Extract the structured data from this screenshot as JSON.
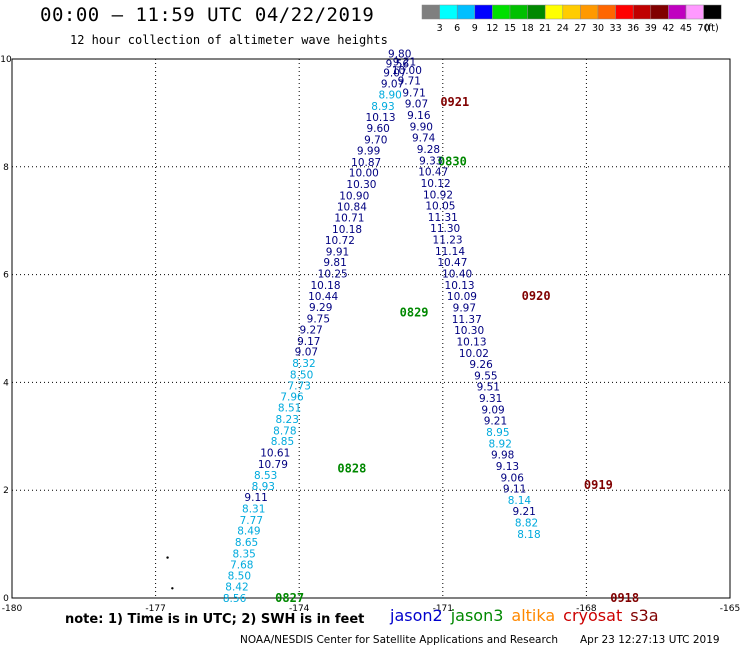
{
  "header": {
    "title": "00:00 – 11:59 UTC 04/22/2019",
    "subtitle": "12 hour collection of altimeter wave heights"
  },
  "color_scale": {
    "unit_label": "(ft)",
    "labels": [
      "3",
      "6",
      "9",
      "12",
      "15",
      "18",
      "21",
      "24",
      "27",
      "30",
      "33",
      "36",
      "39",
      "42",
      "45",
      "70"
    ],
    "colors": [
      "#7f7f7f",
      "#00ffff",
      "#00bfff",
      "#0000ff",
      "#00e000",
      "#00c000",
      "#008800",
      "#ffff00",
      "#ffcc00",
      "#ff9900",
      "#ff6600",
      "#ff0000",
      "#c00000",
      "#800000",
      "#c000c0",
      "#ff99ff",
      "#000000"
    ]
  },
  "footer": {
    "note": "note: 1) Time is in UTC; 2) SWH is in feet",
    "credit": "NOAA/NESDIS Center for Satellite Applications and Research",
    "timestamp": "Apr 23 12:27:13 UTC 2019"
  },
  "satellites": [
    {
      "name": "jason2",
      "color": "#0000cc"
    },
    {
      "name": "jason3",
      "color": "#008800"
    },
    {
      "name": "altika",
      "color": "#ff8800"
    },
    {
      "name": "cryosat",
      "color": "#cc0000"
    },
    {
      "name": "s3a",
      "color": "#800000"
    }
  ],
  "chart_data": {
    "type": "scatter",
    "x_ticks": [
      -180,
      -177,
      -174,
      -171,
      -168,
      -165
    ],
    "y_ticks": [
      0,
      2,
      4,
      6,
      8,
      10
    ],
    "xlim": [
      -180,
      -165
    ],
    "ylim": [
      0,
      10
    ],
    "grid": true,
    "series": [
      {
        "satellite": "jason2",
        "colors": {
          "dark": "#000080",
          "light": "#00aadd"
        },
        "label_color": "#008800",
        "time_labels": [
          {
            "text": "0827",
            "x": -174.2,
            "y": 0.0
          },
          {
            "text": "0828",
            "x": -172.9,
            "y": 2.4
          },
          {
            "text": "0829",
            "x": -171.6,
            "y": 5.3
          },
          {
            "text": "0830",
            "x": -170.8,
            "y": 8.1
          }
        ],
        "points": [
          {
            "x": -175.35,
            "y": 0.0,
            "v": "8.56",
            "c": "light"
          },
          {
            "x": -175.3,
            "y": 0.21,
            "v": "8.42",
            "c": "light"
          },
          {
            "x": -175.25,
            "y": 0.42,
            "v": "8.50",
            "c": "light"
          },
          {
            "x": -175.2,
            "y": 0.62,
            "v": "7.68",
            "c": "light"
          },
          {
            "x": -175.15,
            "y": 0.83,
            "v": "8.35",
            "c": "light"
          },
          {
            "x": -175.1,
            "y": 1.04,
            "v": "8.65",
            "c": "light"
          },
          {
            "x": -175.05,
            "y": 1.25,
            "v": "8.49",
            "c": "light"
          },
          {
            "x": -175.0,
            "y": 1.45,
            "v": "7.77",
            "c": "light"
          },
          {
            "x": -174.95,
            "y": 1.66,
            "v": "8.31",
            "c": "light"
          },
          {
            "x": -174.9,
            "y": 1.87,
            "v": "9.11",
            "c": "dark"
          },
          {
            "x": -174.75,
            "y": 2.08,
            "v": "8.93",
            "c": "light"
          },
          {
            "x": -174.7,
            "y": 2.28,
            "v": "8.53",
            "c": "light"
          },
          {
            "x": -174.55,
            "y": 2.49,
            "v": "10.79",
            "c": "dark"
          },
          {
            "x": -174.5,
            "y": 2.7,
            "v": "10.61",
            "c": "dark"
          },
          {
            "x": -174.35,
            "y": 2.91,
            "v": "8.85",
            "c": "light"
          },
          {
            "x": -174.3,
            "y": 3.11,
            "v": "8.78",
            "c": "light"
          },
          {
            "x": -174.25,
            "y": 3.32,
            "v": "8.23",
            "c": "light"
          },
          {
            "x": -174.2,
            "y": 3.53,
            "v": "8.51",
            "c": "light"
          },
          {
            "x": -174.15,
            "y": 3.74,
            "v": "7.96",
            "c": "light"
          },
          {
            "x": -174.0,
            "y": 3.94,
            "v": "7.73",
            "c": "light"
          },
          {
            "x": -173.95,
            "y": 4.15,
            "v": "8.50",
            "c": "light"
          },
          {
            "x": -173.9,
            "y": 4.36,
            "v": "8.32",
            "c": "light"
          },
          {
            "x": -173.85,
            "y": 4.57,
            "v": "9.07",
            "c": "dark"
          },
          {
            "x": -173.8,
            "y": 4.77,
            "v": "9.17",
            "c": "dark"
          },
          {
            "x": -173.75,
            "y": 4.98,
            "v": "9.27",
            "c": "dark"
          },
          {
            "x": -173.6,
            "y": 5.19,
            "v": "9.75",
            "c": "dark"
          },
          {
            "x": -173.55,
            "y": 5.4,
            "v": "9.29",
            "c": "dark"
          },
          {
            "x": -173.5,
            "y": 5.6,
            "v": "10.44",
            "c": "dark"
          },
          {
            "x": -173.45,
            "y": 5.81,
            "v": "10.18",
            "c": "dark"
          },
          {
            "x": -173.3,
            "y": 6.02,
            "v": "10.25",
            "c": "dark"
          },
          {
            "x": -173.25,
            "y": 6.23,
            "v": "9.81",
            "c": "dark"
          },
          {
            "x": -173.2,
            "y": 6.43,
            "v": "9.91",
            "c": "dark"
          },
          {
            "x": -173.15,
            "y": 6.64,
            "v": "10.72",
            "c": "dark"
          },
          {
            "x": -173.0,
            "y": 6.85,
            "v": "10.18",
            "c": "dark"
          },
          {
            "x": -172.95,
            "y": 7.06,
            "v": "10.71",
            "c": "dark"
          },
          {
            "x": -172.9,
            "y": 7.26,
            "v": "10.84",
            "c": "dark"
          },
          {
            "x": -172.85,
            "y": 7.47,
            "v": "10.90",
            "c": "dark"
          },
          {
            "x": -172.7,
            "y": 7.68,
            "v": "10.30",
            "c": "dark"
          },
          {
            "x": -172.65,
            "y": 7.89,
            "v": "10.00",
            "c": "dark"
          },
          {
            "x": -172.6,
            "y": 8.09,
            "v": "10.87",
            "c": "dark"
          },
          {
            "x": -172.55,
            "y": 8.3,
            "v": "9.99",
            "c": "dark"
          },
          {
            "x": -172.4,
            "y": 8.51,
            "v": "9.70",
            "c": "dark"
          },
          {
            "x": -172.35,
            "y": 8.72,
            "v": "9.60",
            "c": "dark"
          },
          {
            "x": -172.3,
            "y": 8.92,
            "v": "10.13",
            "c": "dark"
          },
          {
            "x": -172.25,
            "y": 9.13,
            "v": "8.93",
            "c": "light"
          },
          {
            "x": -172.1,
            "y": 9.34,
            "v": "8.90",
            "c": "light"
          },
          {
            "x": -172.05,
            "y": 9.55,
            "v": "9.07",
            "c": "dark"
          },
          {
            "x": -172.0,
            "y": 9.75,
            "v": "9.07",
            "c": "dark"
          },
          {
            "x": -171.95,
            "y": 9.92,
            "v": "9.56",
            "c": "dark"
          },
          {
            "x": -171.9,
            "y": 10.1,
            "v": "9.80",
            "c": "dark"
          }
        ]
      },
      {
        "satellite": "jason2",
        "colors": {
          "dark": "#000080",
          "light": "#00aadd"
        },
        "label_color": "#800000",
        "time_labels": [
          {
            "text": "0921",
            "x": -170.75,
            "y": 9.2
          },
          {
            "text": "0920",
            "x": -169.05,
            "y": 5.6
          },
          {
            "text": "0919",
            "x": -167.75,
            "y": 2.1
          },
          {
            "text": "0918",
            "x": -167.2,
            "y": 0.0
          }
        ],
        "points": [
          {
            "x": -171.8,
            "y": 9.95,
            "v": "9.21",
            "c": "dark"
          },
          {
            "x": -171.75,
            "y": 9.8,
            "v": "10.00",
            "c": "dark"
          },
          {
            "x": -171.7,
            "y": 9.6,
            "v": "9.71",
            "c": "dark"
          },
          {
            "x": -171.6,
            "y": 9.38,
            "v": "9.71",
            "c": "dark"
          },
          {
            "x": -171.55,
            "y": 9.17,
            "v": "9.07",
            "c": "dark"
          },
          {
            "x": -171.5,
            "y": 8.96,
            "v": "9.16",
            "c": "dark"
          },
          {
            "x": -171.45,
            "y": 8.75,
            "v": "9.90",
            "c": "dark"
          },
          {
            "x": -171.4,
            "y": 8.54,
            "v": "9.74",
            "c": "dark"
          },
          {
            "x": -171.3,
            "y": 8.33,
            "v": "9.28",
            "c": "dark"
          },
          {
            "x": -171.25,
            "y": 8.12,
            "v": "9.33",
            "c": "dark"
          },
          {
            "x": -171.2,
            "y": 7.91,
            "v": "10.47",
            "c": "dark"
          },
          {
            "x": -171.15,
            "y": 7.7,
            "v": "10.12",
            "c": "dark"
          },
          {
            "x": -171.1,
            "y": 7.49,
            "v": "10.92",
            "c": "dark"
          },
          {
            "x": -171.05,
            "y": 7.28,
            "v": "10.05",
            "c": "dark"
          },
          {
            "x": -171.0,
            "y": 7.07,
            "v": "11.31",
            "c": "dark"
          },
          {
            "x": -170.95,
            "y": 6.86,
            "v": "11.30",
            "c": "dark"
          },
          {
            "x": -170.9,
            "y": 6.65,
            "v": "11.23",
            "c": "dark"
          },
          {
            "x": -170.85,
            "y": 6.44,
            "v": "11.14",
            "c": "dark"
          },
          {
            "x": -170.8,
            "y": 6.23,
            "v": "10.47",
            "c": "dark"
          },
          {
            "x": -170.7,
            "y": 6.02,
            "v": "10.40",
            "c": "dark"
          },
          {
            "x": -170.65,
            "y": 5.81,
            "v": "10.13",
            "c": "dark"
          },
          {
            "x": -170.6,
            "y": 5.6,
            "v": "10.09",
            "c": "dark"
          },
          {
            "x": -170.55,
            "y": 5.39,
            "v": "9.97",
            "c": "dark"
          },
          {
            "x": -170.5,
            "y": 5.18,
            "v": "11.37",
            "c": "dark"
          },
          {
            "x": -170.45,
            "y": 4.97,
            "v": "10.30",
            "c": "dark"
          },
          {
            "x": -170.4,
            "y": 4.76,
            "v": "10.13",
            "c": "dark"
          },
          {
            "x": -170.35,
            "y": 4.55,
            "v": "10.02",
            "c": "dark"
          },
          {
            "x": -170.2,
            "y": 4.34,
            "v": "9.26",
            "c": "dark"
          },
          {
            "x": -170.1,
            "y": 4.13,
            "v": "9.55",
            "c": "dark"
          },
          {
            "x": -170.05,
            "y": 3.92,
            "v": "9.51",
            "c": "dark"
          },
          {
            "x": -170.0,
            "y": 3.71,
            "v": "9.31",
            "c": "dark"
          },
          {
            "x": -169.95,
            "y": 3.5,
            "v": "9.09",
            "c": "dark"
          },
          {
            "x": -169.9,
            "y": 3.29,
            "v": "9.21",
            "c": "dark"
          },
          {
            "x": -169.85,
            "y": 3.08,
            "v": "8.95",
            "c": "light"
          },
          {
            "x": -169.8,
            "y": 2.87,
            "v": "8.92",
            "c": "light"
          },
          {
            "x": -169.75,
            "y": 2.66,
            "v": "9.98",
            "c": "dark"
          },
          {
            "x": -169.65,
            "y": 2.45,
            "v": "9.13",
            "c": "dark"
          },
          {
            "x": -169.55,
            "y": 2.24,
            "v": "9.06",
            "c": "dark"
          },
          {
            "x": -169.5,
            "y": 2.03,
            "v": "9.11",
            "c": "dark"
          },
          {
            "x": -169.4,
            "y": 1.82,
            "v": "8.14",
            "c": "light"
          },
          {
            "x": -169.3,
            "y": 1.61,
            "v": "9.21",
            "c": "dark"
          },
          {
            "x": -169.25,
            "y": 1.4,
            "v": "8.82",
            "c": "light"
          },
          {
            "x": -169.2,
            "y": 1.19,
            "v": "8.18",
            "c": "light"
          }
        ]
      }
    ],
    "stray_points": [
      {
        "x": -176.75,
        "y": 0.75
      },
      {
        "x": -176.65,
        "y": 0.18
      }
    ]
  }
}
